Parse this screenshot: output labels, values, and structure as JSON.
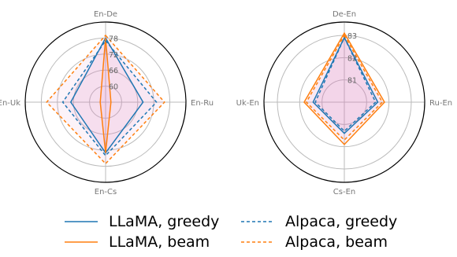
{
  "colors": {
    "llama": "#1f77b4",
    "alpaca_greedy": "#1f77b4",
    "llama_beam": "#ff7f0e",
    "alpaca_beam": "#ff7f0e",
    "fill": "#f5c8d6"
  },
  "legend": [
    {
      "label": "LLaMA, greedy",
      "style": "solid",
      "color": "#1f77b4"
    },
    {
      "label": "LLaMA, beam",
      "style": "solid",
      "color": "#ff7f0e"
    },
    {
      "label": "Alpaca, greedy",
      "style": "dashed",
      "color": "#1f77b4"
    },
    {
      "label": "Alpaca, beam",
      "style": "dashed",
      "color": "#ff7f0e"
    }
  ],
  "chart_data": [
    {
      "type": "radar",
      "axes": [
        "En-De",
        "En-Ru",
        "En-Cs",
        "En-Uk"
      ],
      "rticks": [
        "60",
        "66",
        "72",
        "78"
      ],
      "rlim": [
        54,
        84
      ],
      "series": [
        {
          "name": "LLaMA, greedy",
          "values": [
            78,
            68,
            73,
            67
          ]
        },
        {
          "name": "LLaMA, beam",
          "values": [
            78,
            56,
            73,
            56
          ]
        },
        {
          "name": "Alpaca, greedy",
          "values": [
            77,
            73,
            74,
            70
          ]
        },
        {
          "name": "Alpaca, beam",
          "values": [
            79,
            76,
            77,
            76
          ]
        }
      ]
    },
    {
      "type": "radar",
      "axes": [
        "De-En",
        "Ru-En",
        "Cs-En",
        "Uk-En"
      ],
      "rticks": [
        "81",
        "82",
        "83"
      ],
      "rlim": [
        80,
        83.6
      ],
      "series": [
        {
          "name": "LLaMA, greedy",
          "values": [
            82.9,
            81.5,
            81.4,
            81.4
          ]
        },
        {
          "name": "LLaMA, beam",
          "values": [
            83.1,
            81.8,
            81.9,
            81.8
          ]
        },
        {
          "name": "Alpaca, greedy",
          "values": [
            82.9,
            81.4,
            81.3,
            81.3
          ]
        },
        {
          "name": "Alpaca, beam",
          "values": [
            83.0,
            81.7,
            81.7,
            81.7
          ]
        }
      ]
    }
  ]
}
